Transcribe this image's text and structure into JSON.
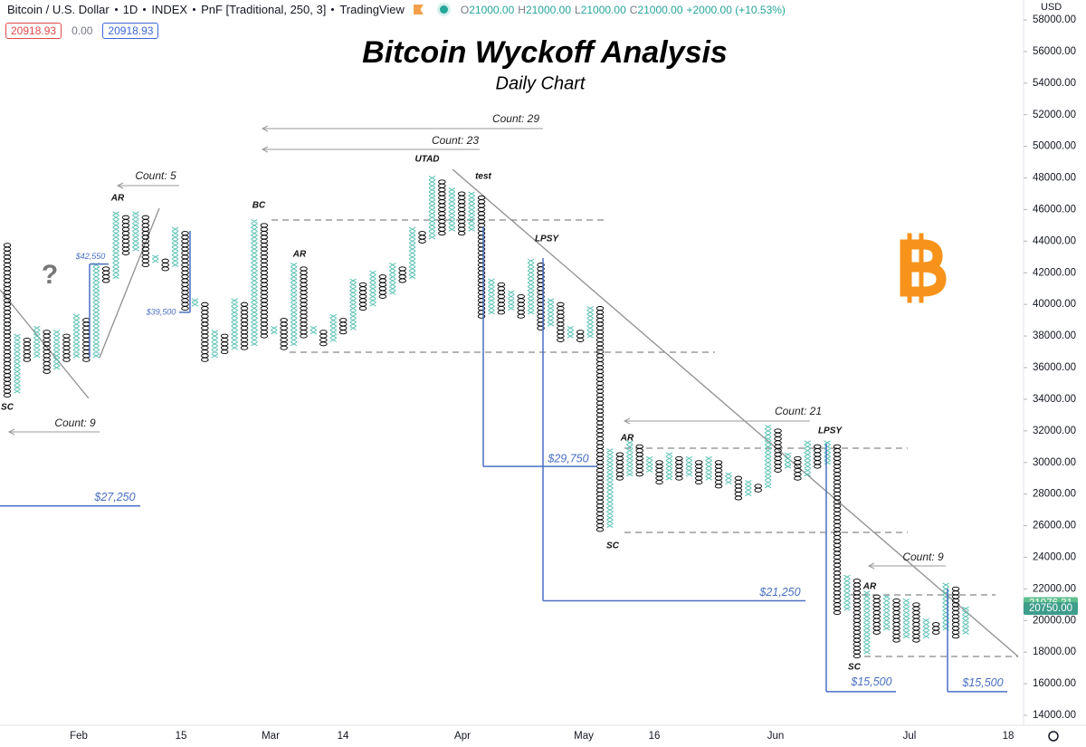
{
  "header": {
    "symbol": "Bitcoin / U.S. Dollar",
    "interval": "1D",
    "exchange": "INDEX",
    "chart_type": "PnF [Traditional, 250, 3]",
    "source": "TradingView",
    "ohlc": [
      {
        "key": "O",
        "value": "21000.00"
      },
      {
        "key": "H",
        "value": "21000.00"
      },
      {
        "key": "L",
        "value": "21000.00"
      },
      {
        "key": "C",
        "value": "21000.00"
      }
    ],
    "change": "+2000.00 (+10.53%)",
    "price_boxes": [
      "20918.93",
      "0.00",
      "20918.93"
    ]
  },
  "chart_data": {
    "type": "pnf",
    "title": "Bitcoin Wyckoff Analysis",
    "subtitle": "Daily Chart",
    "currency": "USD",
    "box_size": 250,
    "ylim": [
      13370,
      59260
    ],
    "yticks": [
      {
        "value": 14000,
        "label": "14000.00"
      },
      {
        "value": 16000,
        "label": "16000.00"
      },
      {
        "value": 18000,
        "label": "18000.00"
      },
      {
        "value": 20000,
        "label": "20000.00"
      },
      {
        "value": 22000,
        "label": "22000.00"
      },
      {
        "value": 24000,
        "label": "24000.00"
      },
      {
        "value": 26000,
        "label": "26000.00"
      },
      {
        "value": 28000,
        "label": "28000.00"
      },
      {
        "value": 30000,
        "label": "30000.00"
      },
      {
        "value": 32000,
        "label": "32000.00"
      },
      {
        "value": 34000,
        "label": "34000.00"
      },
      {
        "value": 36000,
        "label": "36000.00"
      },
      {
        "value": 38000,
        "label": "38000.00"
      },
      {
        "value": 40000,
        "label": "40000.00"
      },
      {
        "value": 42000,
        "label": "42000.00"
      },
      {
        "value": 44000,
        "label": "44000.00"
      },
      {
        "value": 46000,
        "label": "46000.00"
      },
      {
        "value": 48000,
        "label": "48000.00"
      },
      {
        "value": 50000,
        "label": "50000.00"
      },
      {
        "value": 52000,
        "label": "52000.00"
      },
      {
        "value": 54000,
        "label": "54000.00"
      },
      {
        "value": 56000,
        "label": "56000.00"
      },
      {
        "value": 58000,
        "label": "58000.00"
      }
    ],
    "categories": [
      "Feb",
      "15",
      "Mar",
      "14",
      "Apr",
      "May",
      "16",
      "Jun",
      "Jul",
      "18"
    ],
    "price_tags": [
      {
        "value": 21076.31,
        "label": "21076.31"
      },
      {
        "value": 20750,
        "label": "20750.00"
      }
    ],
    "x_color": "#5cc2b4",
    "o_color": "#000000",
    "columns": [
      {
        "type": "O",
        "high": 43750,
        "low": 34250
      },
      {
        "type": "X",
        "high": 38000,
        "low": 34500
      },
      {
        "type": "O",
        "high": 37750,
        "low": 36500
      },
      {
        "type": "X",
        "high": 38500,
        "low": 36750
      },
      {
        "type": "O",
        "high": 38250,
        "low": 35750
      },
      {
        "type": "X",
        "high": 38250,
        "low": 36000
      },
      {
        "type": "O",
        "high": 38000,
        "low": 36500
      },
      {
        "type": "X",
        "high": 39250,
        "low": 36750
      },
      {
        "type": "O",
        "high": 39000,
        "low": 36500
      },
      {
        "type": "X",
        "high": 42500,
        "low": 36750
      },
      {
        "type": "O",
        "high": 42250,
        "low": 41500
      },
      {
        "type": "X",
        "high": 45750,
        "low": 41750
      },
      {
        "type": "O",
        "high": 45500,
        "low": 43250
      },
      {
        "type": "X",
        "high": 45750,
        "low": 43500
      },
      {
        "type": "O",
        "high": 45500,
        "low": 42500
      },
      {
        "type": "X",
        "high": 43000,
        "low": 42750
      },
      {
        "type": "O",
        "high": 42750,
        "low": 42250
      },
      {
        "type": "X",
        "high": 44750,
        "low": 42500
      },
      {
        "type": "O",
        "high": 44500,
        "low": 39750
      },
      {
        "type": "X",
        "high": 40250,
        "low": 40000
      },
      {
        "type": "O",
        "high": 40000,
        "low": 36500
      },
      {
        "type": "X",
        "high": 38250,
        "low": 36750
      },
      {
        "type": "O",
        "high": 38000,
        "low": 37000
      },
      {
        "type": "X",
        "high": 40250,
        "low": 37250
      },
      {
        "type": "O",
        "high": 40000,
        "low": 37250
      },
      {
        "type": "X",
        "high": 45250,
        "low": 37500
      },
      {
        "type": "O",
        "high": 45000,
        "low": 38000
      },
      {
        "type": "X",
        "high": 38500,
        "low": 38250
      },
      {
        "type": "O",
        "high": 39000,
        "low": 37250
      },
      {
        "type": "X",
        "high": 42500,
        "low": 37500
      },
      {
        "type": "O",
        "high": 42250,
        "low": 38000
      },
      {
        "type": "X",
        "high": 38500,
        "low": 38250
      },
      {
        "type": "O",
        "high": 38250,
        "low": 37500
      },
      {
        "type": "X",
        "high": 39250,
        "low": 37750
      },
      {
        "type": "O",
        "high": 39000,
        "low": 38250
      },
      {
        "type": "X",
        "high": 41500,
        "low": 38500
      },
      {
        "type": "O",
        "high": 41250,
        "low": 39750
      },
      {
        "type": "X",
        "high": 42000,
        "low": 40000
      },
      {
        "type": "O",
        "high": 41750,
        "low": 40500
      },
      {
        "type": "X",
        "high": 42500,
        "low": 40750
      },
      {
        "type": "O",
        "high": 42250,
        "low": 41500
      },
      {
        "type": "X",
        "high": 44750,
        "low": 41750
      },
      {
        "type": "O",
        "high": 44500,
        "low": 44000
      },
      {
        "type": "X",
        "high": 48000,
        "low": 44250
      },
      {
        "type": "O",
        "high": 47750,
        "low": 44500
      },
      {
        "type": "X",
        "high": 47250,
        "low": 44750
      },
      {
        "type": "O",
        "high": 47000,
        "low": 44500
      },
      {
        "type": "X",
        "high": 47000,
        "low": 44750
      },
      {
        "type": "O",
        "high": 46750,
        "low": 39250
      },
      {
        "type": "X",
        "high": 41500,
        "low": 39500
      },
      {
        "type": "O",
        "high": 41250,
        "low": 39500
      },
      {
        "type": "X",
        "high": 40750,
        "low": 39750
      },
      {
        "type": "O",
        "high": 40500,
        "low": 39250
      },
      {
        "type": "X",
        "high": 42750,
        "low": 39500
      },
      {
        "type": "O",
        "high": 42500,
        "low": 38500
      },
      {
        "type": "X",
        "high": 40250,
        "low": 38750
      },
      {
        "type": "O",
        "high": 40000,
        "low": 37750
      },
      {
        "type": "X",
        "high": 38500,
        "low": 38000
      },
      {
        "type": "O",
        "high": 38250,
        "low": 37750
      },
      {
        "type": "X",
        "high": 39750,
        "low": 38000
      },
      {
        "type": "O",
        "high": 39750,
        "low": 25750
      },
      {
        "type": "X",
        "high": 30750,
        "low": 26000
      },
      {
        "type": "O",
        "high": 30500,
        "low": 29000
      },
      {
        "type": "X",
        "high": 31250,
        "low": 29250
      },
      {
        "type": "O",
        "high": 31000,
        "low": 29250
      },
      {
        "type": "X",
        "high": 30250,
        "low": 29500
      },
      {
        "type": "O",
        "high": 30000,
        "low": 28750
      },
      {
        "type": "X",
        "high": 30500,
        "low": 29000
      },
      {
        "type": "O",
        "high": 30250,
        "low": 29000
      },
      {
        "type": "X",
        "high": 30250,
        "low": 29250
      },
      {
        "type": "O",
        "high": 30000,
        "low": 28750
      },
      {
        "type": "X",
        "high": 30250,
        "low": 29000
      },
      {
        "type": "O",
        "high": 30000,
        "low": 28500
      },
      {
        "type": "X",
        "high": 29250,
        "low": 28750
      },
      {
        "type": "O",
        "high": 29000,
        "low": 27750
      },
      {
        "type": "X",
        "high": 28750,
        "low": 28000
      },
      {
        "type": "O",
        "high": 28500,
        "low": 28250
      },
      {
        "type": "X",
        "high": 32250,
        "low": 28500
      },
      {
        "type": "O",
        "high": 32000,
        "low": 29500
      },
      {
        "type": "X",
        "high": 30500,
        "low": 29750
      },
      {
        "type": "O",
        "high": 30250,
        "low": 29000
      },
      {
        "type": "X",
        "high": 31250,
        "low": 29250
      },
      {
        "type": "O",
        "high": 31000,
        "low": 29750
      },
      {
        "type": "X",
        "high": 31250,
        "low": 30000
      },
      {
        "type": "O",
        "high": 31000,
        "low": 20500
      },
      {
        "type": "X",
        "high": 22750,
        "low": 20750
      },
      {
        "type": "O",
        "high": 22500,
        "low": 17750
      },
      {
        "type": "X",
        "high": 21750,
        "low": 18000
      },
      {
        "type": "O",
        "high": 21500,
        "low": 19250
      },
      {
        "type": "X",
        "high": 21500,
        "low": 19500
      },
      {
        "type": "O",
        "high": 21250,
        "low": 18750
      },
      {
        "type": "X",
        "high": 21250,
        "low": 19000
      },
      {
        "type": "O",
        "high": 21000,
        "low": 18750
      },
      {
        "type": "X",
        "high": 20000,
        "low": 19000
      },
      {
        "type": "O",
        "high": 19750,
        "low": 19250
      },
      {
        "type": "X",
        "high": 22250,
        "low": 19500
      },
      {
        "type": "O",
        "high": 22000,
        "low": 19000
      },
      {
        "type": "X",
        "high": 20750,
        "low": 19250
      }
    ],
    "annotations": [
      "SC",
      "AR",
      "BC",
      "AR",
      "UTAD",
      "test",
      "LPSY",
      "SC",
      "AR",
      "LPSY",
      "AR",
      "SC",
      "?"
    ],
    "counts": [
      "Count: 5",
      "Count: 9",
      "Count: 29",
      "Count: 23",
      "Count: 21",
      "Count: 9"
    ],
    "targets": [
      {
        "label": "$42,550",
        "value": 42550
      },
      {
        "label": "$39,500",
        "value": 39500
      },
      {
        "label": "$27,250",
        "value": 27250
      },
      {
        "label": "$29,750",
        "value": 29750
      },
      {
        "label": "$21,250",
        "value": 21250
      },
      {
        "label": "$15,500",
        "value": 15500
      },
      {
        "label": "$15,500",
        "value": 15500
      }
    ]
  }
}
